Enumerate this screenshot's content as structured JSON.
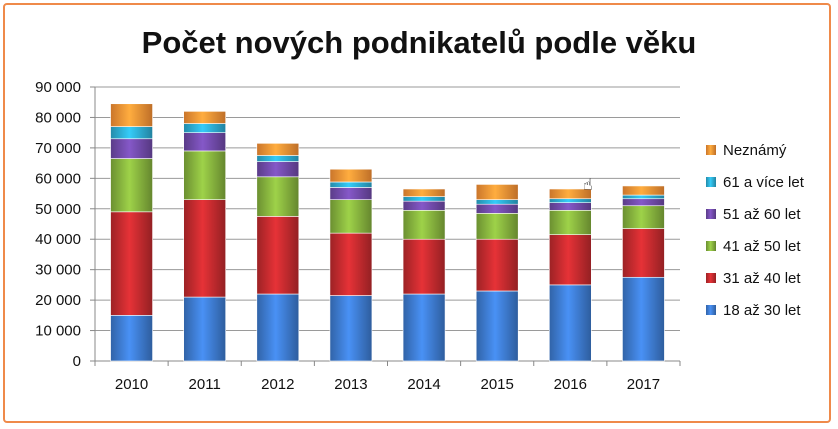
{
  "chart_data": {
    "type": "bar",
    "stacked": true,
    "title": "Počet nových podnikatelů podle věku",
    "xlabel": "",
    "ylabel": "",
    "ylim": [
      0,
      90000
    ],
    "y_ticks": [
      "0",
      "10 000",
      "20 000",
      "30 000",
      "40 000",
      "50 000",
      "60 000",
      "70 000",
      "80 000",
      "90 000"
    ],
    "y_tick_values": [
      0,
      10000,
      20000,
      30000,
      40000,
      50000,
      60000,
      70000,
      80000,
      90000
    ],
    "grid": true,
    "legend_position": "right",
    "categories": [
      "2010",
      "2011",
      "2012",
      "2013",
      "2014",
      "2015",
      "2016",
      "2017"
    ],
    "series": [
      {
        "name": "18 až 30 let",
        "color": "#3a74c4",
        "values": [
          15000,
          21000,
          22000,
          21500,
          22000,
          23000,
          25000,
          27500
        ]
      },
      {
        "name": "31 až 40 let",
        "color": "#b8282c",
        "values": [
          34000,
          32000,
          25500,
          20500,
          18000,
          17000,
          16500,
          16000
        ]
      },
      {
        "name": "41 až 50 let",
        "color": "#7ea83a",
        "values": [
          17500,
          16000,
          13000,
          11000,
          9500,
          8500,
          8000,
          7500
        ]
      },
      {
        "name": "51 až 60 let",
        "color": "#6a46a0",
        "values": [
          6500,
          6000,
          5000,
          4000,
          3000,
          3000,
          2500,
          2300
        ]
      },
      {
        "name": "61 a více let",
        "color": "#2aa3c7",
        "values": [
          4000,
          3000,
          2000,
          1800,
          1500,
          1500,
          1300,
          1200
        ]
      },
      {
        "name": "Neznámý",
        "color": "#ee8a32",
        "values": [
          7500,
          4000,
          4000,
          4200,
          2500,
          5000,
          3200,
          3000
        ]
      }
    ]
  }
}
